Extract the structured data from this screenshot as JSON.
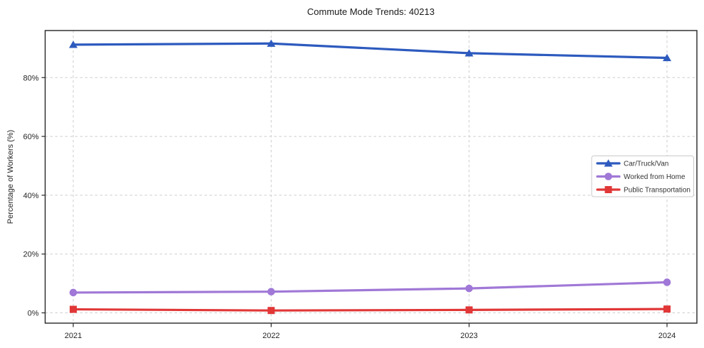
{
  "chart_data": {
    "type": "line",
    "title": "Commute Mode Trends: 40213",
    "ylabel": "Percentage of Workers (%)",
    "xlabel": "",
    "x": [
      2021,
      2022,
      2023,
      2024
    ],
    "x_tick_labels": [
      "2021",
      "2022",
      "2023",
      "2024"
    ],
    "y_ticks": [
      0,
      20,
      40,
      60,
      80
    ],
    "y_tick_labels": [
      "0%",
      "20%",
      "40%",
      "60%",
      "80%"
    ],
    "ylim": [
      -3.5,
      96
    ],
    "grid": true,
    "legend_position": "center-right",
    "series": [
      {
        "name": "Car/Truck/Van",
        "marker": "triangle",
        "color": "#2d5abe",
        "values": [
          91.2,
          91.6,
          88.3,
          86.7
        ]
      },
      {
        "name": "Worked from Home",
        "marker": "circle",
        "color": "#a078d7",
        "values": [
          6.9,
          7.2,
          8.3,
          10.4
        ]
      },
      {
        "name": "Public Transportation",
        "marker": "square",
        "color": "#e13737",
        "values": [
          1.2,
          0.8,
          1.0,
          1.3
        ]
      }
    ]
  },
  "style_colors": {
    "frame": "#262626",
    "grid": "#cecece",
    "tick_label": "#262626",
    "legend_border": "#c9c9c9",
    "legend_text": "#333333"
  }
}
